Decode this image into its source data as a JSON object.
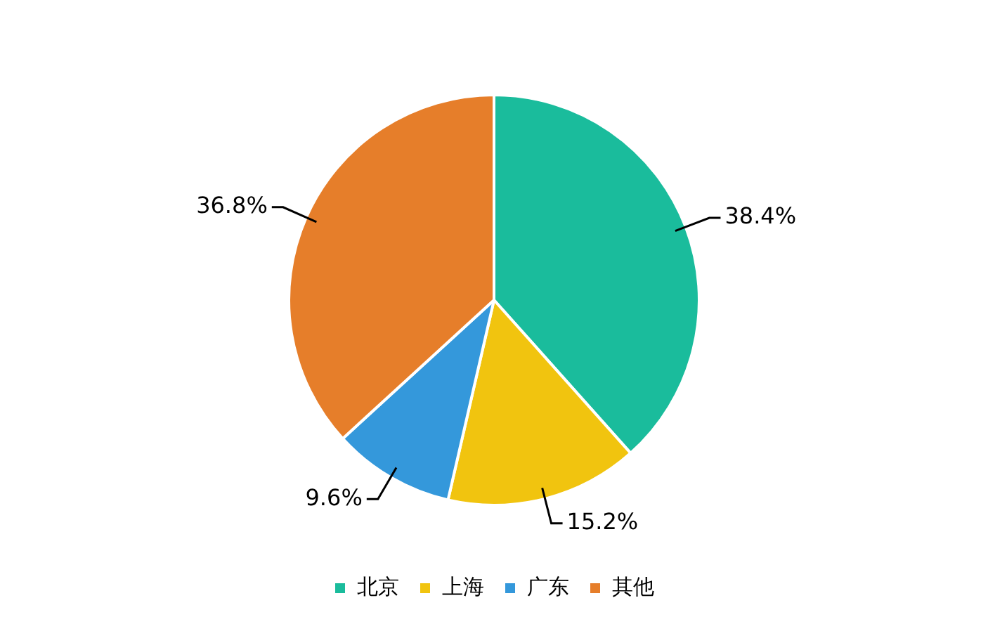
{
  "chart_data": {
    "type": "pie",
    "categories": [
      "北京",
      "上海",
      "广东",
      "其他"
    ],
    "values": [
      38.4,
      15.2,
      9.6,
      36.8
    ],
    "colors": [
      "#1abc9c",
      "#f1c40f",
      "#3498db",
      "#e67e2a"
    ],
    "value_labels": [
      "38.4%",
      "15.2%",
      "9.6%",
      "36.8%"
    ],
    "legend": "bottom"
  }
}
